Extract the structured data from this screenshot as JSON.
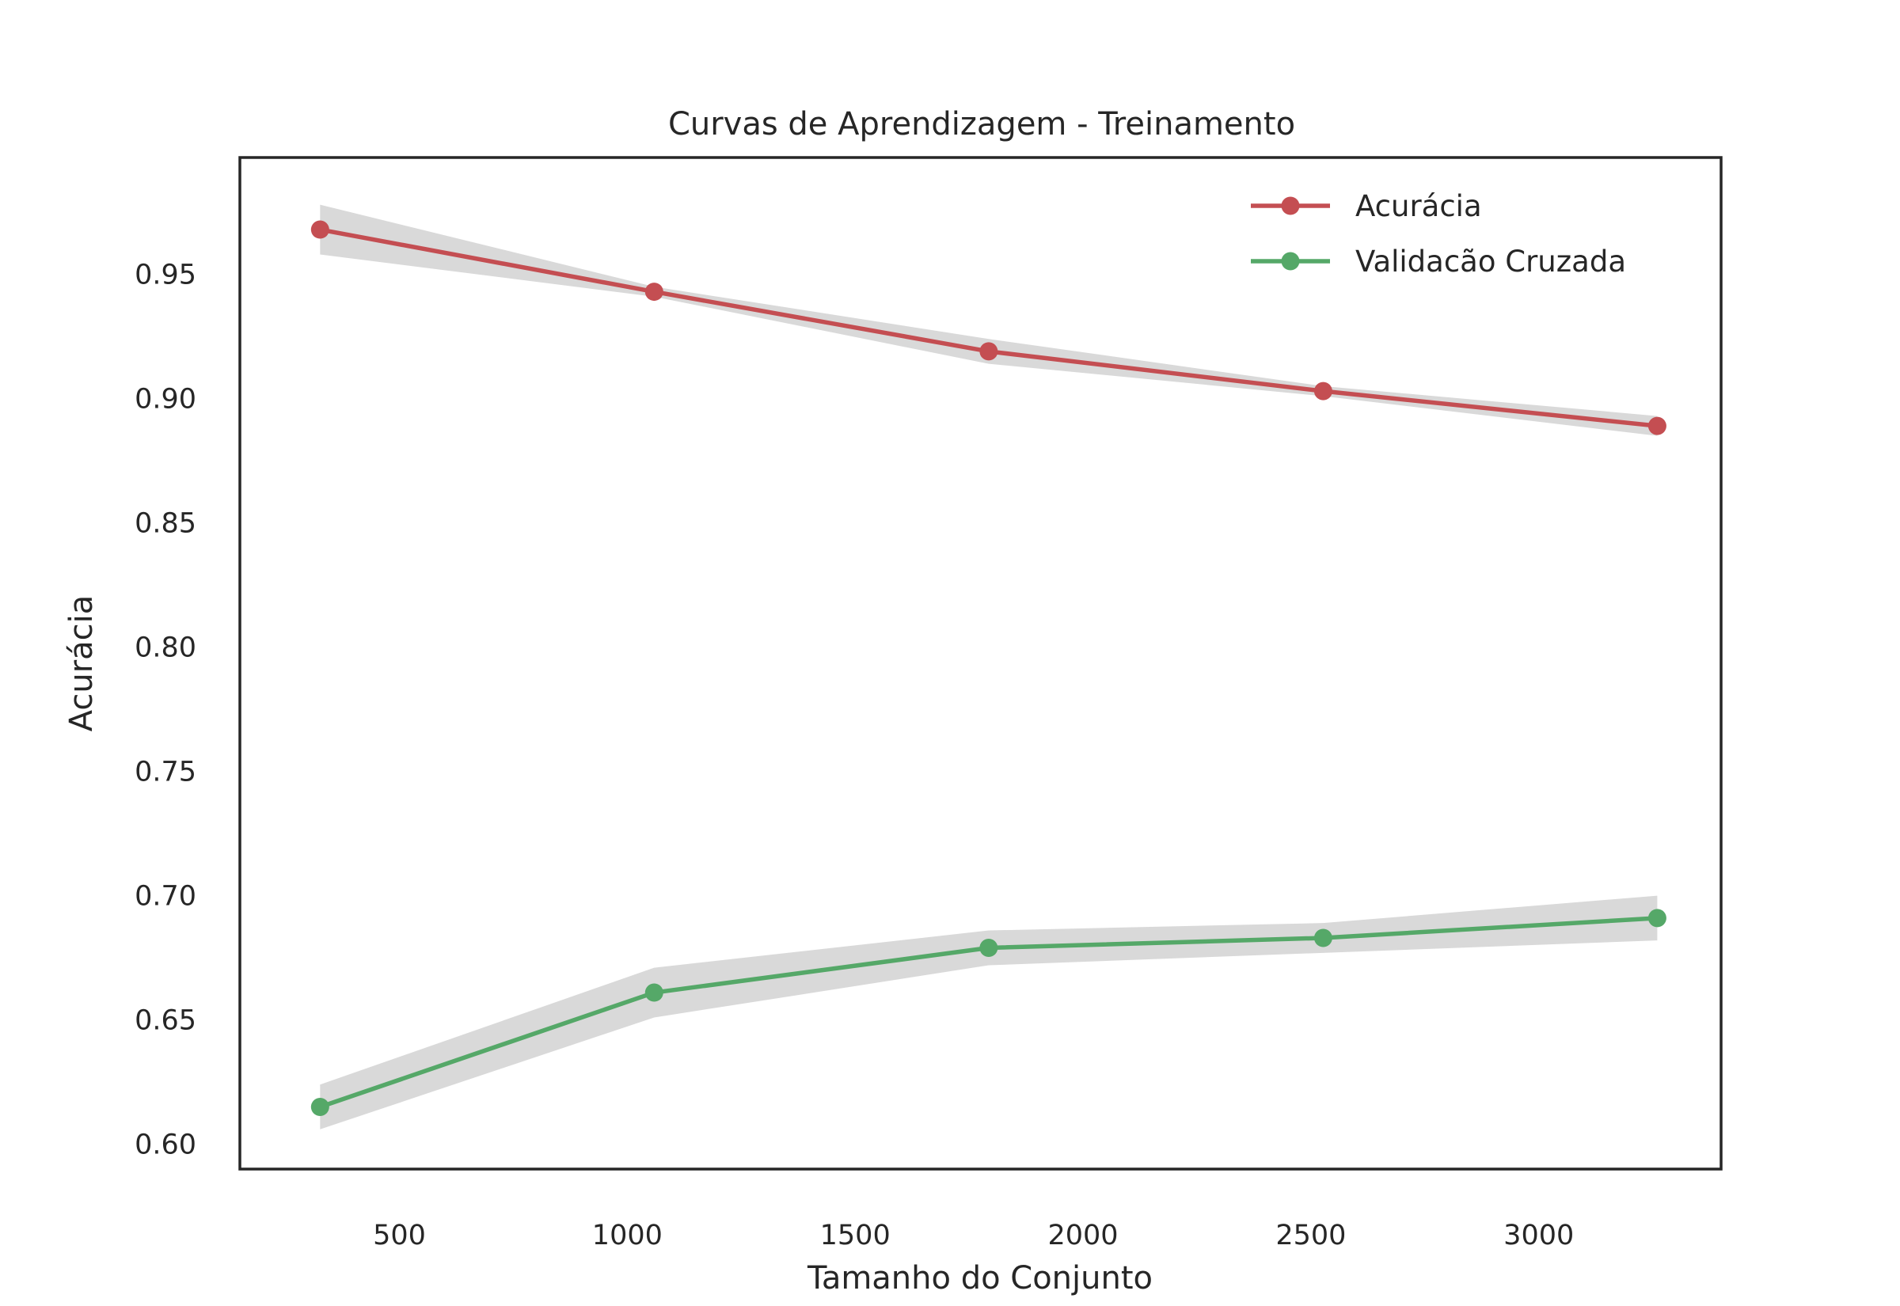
{
  "chart_data": {
    "type": "line",
    "title": "Curvas de Aprendizagem - Treinamento",
    "xlabel": "Tamanho do Conjunto",
    "ylabel": "Acurácia",
    "xlim": [
      150,
      3400
    ],
    "ylim": [
      0.59,
      0.997
    ],
    "xticks": [
      500,
      1000,
      1500,
      2000,
      2500,
      3000
    ],
    "yticks": [
      0.6,
      0.65,
      0.7,
      0.75,
      0.8,
      0.85,
      0.9,
      0.95
    ],
    "xtick_labels": [
      "500",
      "1000",
      "1500",
      "2000",
      "2500",
      "3000"
    ],
    "ytick_labels": [
      "0.60",
      "0.65",
      "0.70",
      "0.75",
      "0.80",
      "0.85",
      "0.90",
      "0.95"
    ],
    "grid": false,
    "legend_position": "top-right",
    "x": [
      326,
      1059,
      1793,
      2527,
      3260
    ],
    "series": [
      {
        "name": "Acurácia",
        "color": "#c44e52",
        "values": [
          0.968,
          0.943,
          0.919,
          0.903,
          0.889
        ],
        "lower": [
          0.958,
          0.941,
          0.914,
          0.901,
          0.885
        ],
        "upper": [
          0.978,
          0.945,
          0.924,
          0.905,
          0.893
        ]
      },
      {
        "name": "Validacão Cruzada",
        "color": "#55a868",
        "values": [
          0.615,
          0.661,
          0.679,
          0.683,
          0.691
        ],
        "lower": [
          0.606,
          0.651,
          0.672,
          0.677,
          0.682
        ],
        "upper": [
          0.624,
          0.671,
          0.686,
          0.689,
          0.7
        ]
      }
    ],
    "band_color": "#d9d9d9"
  }
}
